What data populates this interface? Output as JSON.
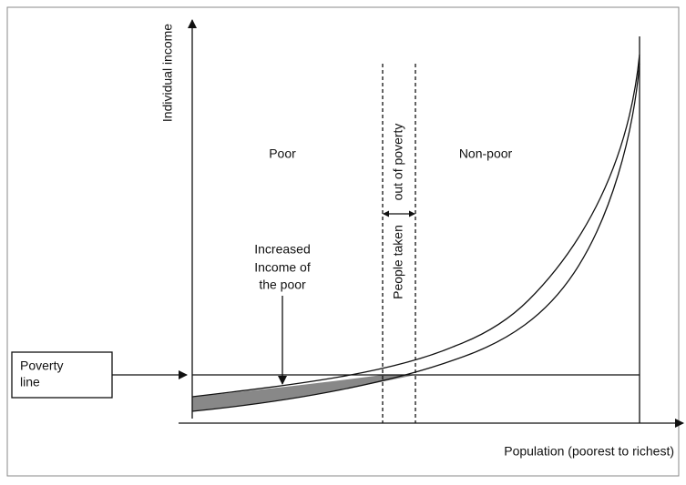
{
  "y_axis_label": "Individual income",
  "x_axis_label": "Population (poorest to richest)",
  "regions": {
    "poor": "Poor",
    "non_poor": "Non-poor"
  },
  "people_taken": [
    "People taken",
    "out of poverty"
  ],
  "increased_income": [
    "Increased",
    "Income of",
    "the poor"
  ],
  "poverty_line": [
    "Poverty",
    "line"
  ]
}
